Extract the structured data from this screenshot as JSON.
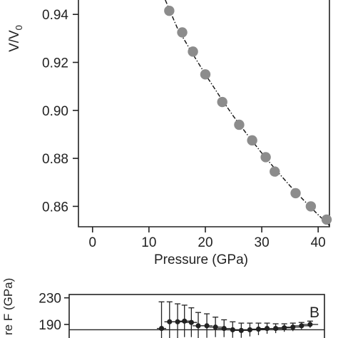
{
  "chart_data": [
    {
      "type": "scatter",
      "panel": "A",
      "xlabel": "Pressure (GPa)",
      "ylabel": "V/V",
      "ylabel_sub": "0",
      "xlim": [
        -2.5,
        42
      ],
      "ylim": [
        0.8515,
        0.946
      ],
      "xticks": [
        0,
        10,
        20,
        30,
        40
      ],
      "yticks": [
        0.86,
        0.88,
        0.9,
        0.92,
        0.94
      ],
      "ytick_labels": [
        "0.86",
        "0.88",
        "0.90",
        "0.92",
        "0.94"
      ],
      "series": [
        {
          "style": "gray-circle-markers",
          "color": "#8c8c8c",
          "x": [
            13.6,
            15.9,
            17.8,
            20.0,
            23.0,
            26.0,
            28.3,
            30.7,
            32.3,
            36.0,
            38.7,
            41.5
          ],
          "y": [
            0.9415,
            0.9325,
            0.9245,
            0.915,
            0.9035,
            0.894,
            0.8875,
            0.8805,
            0.8745,
            0.8655,
            0.86,
            0.8545
          ]
        },
        {
          "style": "dash-dot-fit-line",
          "color": "#1a1a1a",
          "x": [
            12.9,
            15,
            17.5,
            20,
            22.5,
            25,
            27.5,
            30,
            32.5,
            35,
            37.5,
            40,
            42
          ],
          "y": [
            0.946,
            0.9345,
            0.9245,
            0.915,
            0.906,
            0.8975,
            0.8897,
            0.8822,
            0.8752,
            0.8686,
            0.8624,
            0.8565,
            0.852
          ]
        }
      ]
    },
    {
      "type": "scatter",
      "panel": "B",
      "panel_label": "B",
      "ylabel_partial": "re F (GPa)",
      "ylabel_italic": "F",
      "xlim": [
        -2.5,
        42
      ],
      "ylim": [
        160,
        235
      ],
      "yticks": [
        190,
        230
      ],
      "ytick_labels": [
        "190",
        "230"
      ],
      "reference_line": 182,
      "series": [
        {
          "style": "black-markers-with-error-bars",
          "color": "#222222",
          "x": [
            13.6,
            15.0,
            16.4,
            17.6,
            18.8,
            20.0,
            21.5,
            23.0,
            24.5,
            26.0,
            27.5,
            29.0,
            30.5,
            32.0,
            33.5,
            35.0,
            36.5,
            38.0,
            39.5
          ],
          "y": [
            184,
            194,
            194,
            195,
            193,
            188,
            188,
            186,
            184,
            182,
            181,
            182,
            183,
            184,
            184,
            185,
            186,
            188,
            190
          ],
          "yerr": [
            40,
            30,
            27,
            24,
            22,
            20,
            18,
            15,
            13,
            12,
            11,
            10,
            9,
            8,
            7,
            6,
            6,
            5,
            5
          ],
          "xerr": [
            0.8,
            0.9,
            0.9,
            1.0,
            1.0,
            1.0,
            1.0,
            1.1,
            1.1,
            1.1,
            1.2,
            1.2,
            1.2,
            1.3,
            1.3,
            1.3,
            1.4,
            1.4,
            1.4
          ]
        }
      ]
    }
  ]
}
